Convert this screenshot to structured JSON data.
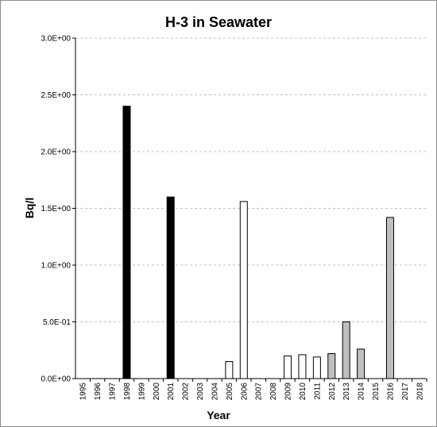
{
  "chart_data": {
    "type": "bar",
    "title": "H-3 in Seawater",
    "x_label": "Year",
    "y_label": "Bq/l",
    "categories": [
      "1995",
      "1996",
      "1997",
      "1998",
      "1999",
      "2000",
      "2001",
      "2002",
      "2003",
      "2004",
      "2005",
      "2006",
      "2007",
      "2008",
      "2009",
      "2010",
      "2011",
      "2012",
      "2013",
      "2014",
      "2015",
      "2016",
      "2017",
      "2018"
    ],
    "values": [
      null,
      null,
      null,
      2.4,
      null,
      null,
      1.6,
      null,
      null,
      null,
      0.15,
      1.56,
      null,
      null,
      0.2,
      0.21,
      0.19,
      0.22,
      0.5,
      0.26,
      null,
      1.42,
      null,
      null
    ],
    "colors": [
      null,
      null,
      null,
      "#000000",
      null,
      null,
      "#000000",
      null,
      null,
      null,
      "#ffffff",
      "#ffffff",
      null,
      null,
      "#ffffff",
      "#ffffff",
      "#ffffff",
      "#bfbfbf",
      "#bfbfbf",
      "#bfbfbf",
      null,
      "#bfbfbf",
      null,
      null
    ],
    "ylim": [
      0,
      3
    ],
    "yticks": [
      {
        "value": 0,
        "label": "0.0E+00"
      },
      {
        "value": 0.5,
        "label": "5.0E-01"
      },
      {
        "value": 1,
        "label": "1.0E+00"
      },
      {
        "value": 1.5,
        "label": "1.5E+00"
      },
      {
        "value": 2,
        "label": "2.0E+00"
      },
      {
        "value": 2.5,
        "label": "2.5E+00"
      },
      {
        "value": 3,
        "label": "3.0E+00"
      }
    ],
    "grid": true
  }
}
